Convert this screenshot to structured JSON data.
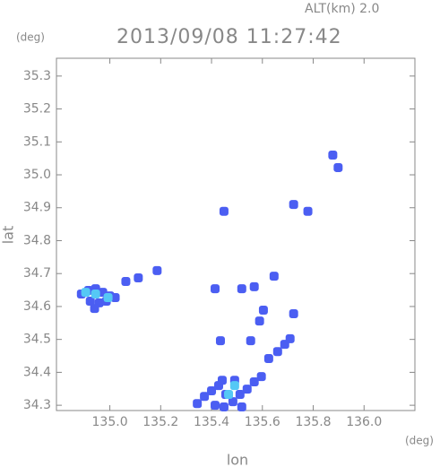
{
  "chart_data": {
    "type": "scatter",
    "title": "2013/09/08 11:27:42",
    "subtitle": "ALT(km)  2.0",
    "x_label": "lon",
    "x_unit": "(deg)",
    "y_label": "lat",
    "y_unit": "(deg)",
    "xlim": [
      134.79,
      136.2
    ],
    "ylim": [
      34.284,
      35.354
    ],
    "xticks": [
      {
        "value": 135.0,
        "label": "135.0"
      },
      135.2,
      135.4,
      135.6,
      135.8,
      {
        "value": 136.0,
        "label": "136.0"
      }
    ],
    "yticks": [
      34.3,
      34.4,
      34.5,
      34.6,
      34.7,
      34.8,
      34.9,
      {
        "value": 35.0,
        "label": "35.0"
      },
      35.1,
      35.2,
      35.3
    ],
    "series": [
      {
        "color": "#4b5ef2",
        "x": [
          134.888,
          134.916,
          134.944,
          134.972,
          135.0,
          134.923,
          134.958,
          134.986,
          134.94,
          135.021,
          135.063,
          135.186,
          135.112,
          135.344,
          135.372,
          135.4,
          135.428,
          135.456,
          135.484,
          135.512,
          135.54,
          135.568,
          135.596,
          135.414,
          135.449,
          135.519,
          135.491,
          135.442,
          135.625,
          135.66,
          135.688,
          135.709,
          135.554,
          135.589,
          135.604,
          135.568,
          135.519,
          135.646,
          135.723,
          135.414,
          135.435,
          135.449,
          135.877,
          135.898,
          135.723,
          135.779
        ],
        "y": [
          34.638,
          34.649,
          34.654,
          34.643,
          34.632,
          34.616,
          34.611,
          34.616,
          34.594,
          34.627,
          34.676,
          34.709,
          34.687,
          34.305,
          34.327,
          34.344,
          34.36,
          34.333,
          34.311,
          34.333,
          34.349,
          34.371,
          34.387,
          34.3,
          34.295,
          34.295,
          34.376,
          34.376,
          34.442,
          34.463,
          34.485,
          34.502,
          34.496,
          34.556,
          34.589,
          34.66,
          34.654,
          34.692,
          34.578,
          34.654,
          34.496,
          34.889,
          35.06,
          35.022,
          34.91,
          34.889
        ]
      },
      {
        "color": "#55c8f5",
        "x": [
          134.905,
          134.944,
          134.993,
          135.467,
          135.491
        ],
        "y": [
          34.643,
          34.638,
          34.627,
          34.333,
          34.36
        ]
      }
    ]
  }
}
